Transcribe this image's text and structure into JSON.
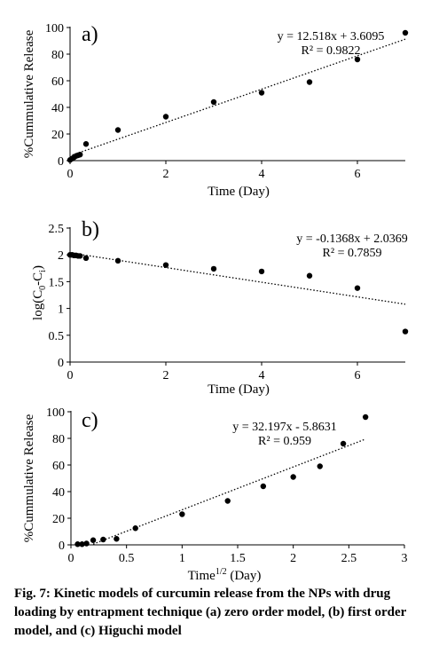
{
  "chart_data": [
    {
      "type": "scatter",
      "panel_label": "a)",
      "ylabel": "%Cummulative Release",
      "xlabel": "Time (Day)",
      "xlim": [
        0,
        7
      ],
      "ylim": [
        0,
        100
      ],
      "xticks": [
        0,
        2,
        4,
        6
      ],
      "yticks": [
        0,
        20,
        40,
        60,
        80,
        100
      ],
      "equation": "y = 12.518x + 3.6095",
      "r2": "R² = 0.9822",
      "trendline": {
        "slope": 12.518,
        "intercept": 3.6095
      },
      "x": [
        0,
        0.042,
        0.083,
        0.125,
        0.167,
        0.208,
        0.333,
        1,
        2,
        3,
        4,
        5,
        6,
        7
      ],
      "y": [
        0.5,
        1.5,
        2.5,
        3.5,
        4,
        4.5,
        12.5,
        23,
        33,
        44,
        51,
        59,
        76,
        96
      ]
    },
    {
      "type": "scatter",
      "panel_label": "b)",
      "ylabel": "log(C0-Ci)",
      "xlabel": "Time (Day)",
      "xlim": [
        0,
        7
      ],
      "ylim": [
        0,
        2.5
      ],
      "xticks": [
        0,
        2,
        4,
        6
      ],
      "yticks": [
        0,
        0.5,
        1,
        1.5,
        2,
        2.5
      ],
      "equation": "y = -0.1368x + 2.0369",
      "r2": "R² = 0.7859",
      "trendline": {
        "slope": -0.1368,
        "intercept": 2.0369
      },
      "x": [
        0,
        0.042,
        0.083,
        0.125,
        0.167,
        0.208,
        0.333,
        1,
        2,
        3,
        4,
        5,
        6,
        7
      ],
      "y": [
        2.0,
        2.0,
        1.99,
        1.99,
        1.98,
        1.98,
        1.94,
        1.89,
        1.81,
        1.74,
        1.69,
        1.61,
        1.38,
        0.57
      ]
    },
    {
      "type": "scatter",
      "panel_label": "c)",
      "ylabel": "%Cummulative Release",
      "xlabel_main": "Time",
      "xlabel_sup": "1/2",
      "xlabel_tail": " (Day)",
      "xlim": [
        0,
        3
      ],
      "ylim": [
        0,
        100
      ],
      "xticks": [
        0,
        0.5,
        1,
        1.5,
        2,
        2.5,
        3
      ],
      "yticks": [
        0,
        20,
        40,
        60,
        80,
        100
      ],
      "equation": "y = 32.197x - 5.8631",
      "r2": "R² = 0.959",
      "trendline": {
        "slope": 32.197,
        "intercept": -5.8631
      },
      "x": [
        0.06,
        0.1,
        0.14,
        0.2,
        0.29,
        0.41,
        0.58,
        1,
        1.41,
        1.73,
        2,
        2.24,
        2.45,
        2.65
      ],
      "y": [
        0.5,
        0.5,
        1,
        3.5,
        4,
        4.5,
        12.5,
        23,
        33,
        44,
        51,
        59,
        76,
        96
      ]
    }
  ],
  "caption": "Fig. 7: Kinetic models of curcumin release from the NPs with drug loading by entrapment technique (a) zero order model, (b) first order model, and (c) Higuchi model"
}
